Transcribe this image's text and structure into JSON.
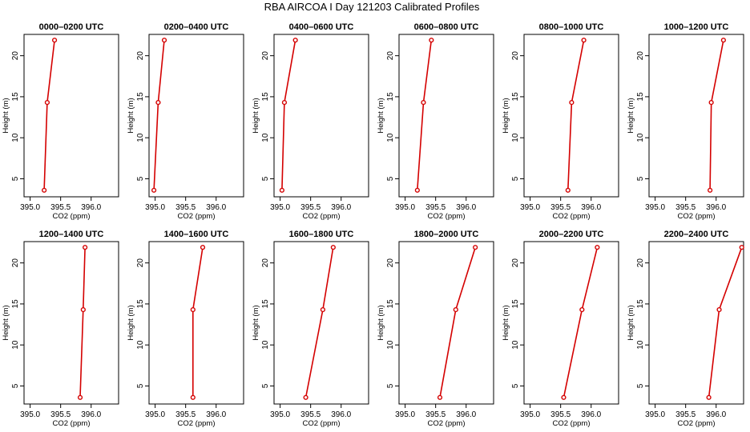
{
  "figure": {
    "title": "RBA AIRCOA I  Day 121203  Calibrated Profiles"
  },
  "chart_data": [
    {
      "type": "line",
      "title": "0000–0200 UTC",
      "xlabel": "CO2 (ppm)",
      "ylabel": "Height (m)",
      "xlim": [
        394.9,
        396.45
      ],
      "ylim": [
        2.8,
        22.6
      ],
      "xticks": [
        "395.0",
        "395.5",
        "396.0"
      ],
      "yticks": [
        "5",
        "10",
        "15",
        "20"
      ],
      "grid": false,
      "x": [
        395.23,
        395.28,
        395.4
      ],
      "y": [
        3.6,
        14.3,
        21.9
      ]
    },
    {
      "type": "line",
      "title": "0200–0400 UTC",
      "xlabel": "CO2 (ppm)",
      "ylabel": "Height (m)",
      "xlim": [
        394.9,
        396.45
      ],
      "ylim": [
        2.8,
        22.6
      ],
      "xticks": [
        "395.0",
        "395.5",
        "396.0"
      ],
      "yticks": [
        "5",
        "10",
        "15",
        "20"
      ],
      "grid": false,
      "x": [
        394.98,
        395.05,
        395.15
      ],
      "y": [
        3.6,
        14.3,
        21.9
      ]
    },
    {
      "type": "line",
      "title": "0400–0600 UTC",
      "xlabel": "CO2 (ppm)",
      "ylabel": "Height (m)",
      "xlim": [
        394.9,
        396.45
      ],
      "ylim": [
        2.8,
        22.6
      ],
      "xticks": [
        "395.0",
        "395.5",
        "396.0"
      ],
      "yticks": [
        "5",
        "10",
        "15",
        "20"
      ],
      "grid": false,
      "x": [
        395.03,
        395.07,
        395.25
      ],
      "y": [
        3.6,
        14.3,
        21.9
      ]
    },
    {
      "type": "line",
      "title": "0600–0800 UTC",
      "xlabel": "CO2 (ppm)",
      "ylabel": "Height (m)",
      "xlim": [
        394.9,
        396.45
      ],
      "ylim": [
        2.8,
        22.6
      ],
      "xticks": [
        "395.0",
        "395.5",
        "396.0"
      ],
      "yticks": [
        "5",
        "10",
        "15",
        "20"
      ],
      "grid": false,
      "x": [
        395.2,
        395.3,
        395.43
      ],
      "y": [
        3.6,
        14.3,
        21.9
      ]
    },
    {
      "type": "line",
      "title": "0800–1000 UTC",
      "xlabel": "CO2 (ppm)",
      "ylabel": "Height (m)",
      "xlim": [
        394.9,
        396.45
      ],
      "ylim": [
        2.8,
        22.6
      ],
      "xticks": [
        "395.0",
        "395.5",
        "396.0"
      ],
      "yticks": [
        "5",
        "10",
        "15",
        "20"
      ],
      "grid": false,
      "x": [
        395.62,
        395.68,
        395.88
      ],
      "y": [
        3.6,
        14.3,
        21.9
      ]
    },
    {
      "type": "line",
      "title": "1000–1200 UTC",
      "xlabel": "CO2 (ppm)",
      "ylabel": "Height (m)",
      "xlim": [
        394.9,
        396.45
      ],
      "ylim": [
        2.8,
        22.6
      ],
      "xticks": [
        "395.0",
        "395.5",
        "396.0"
      ],
      "yticks": [
        "5",
        "10",
        "15",
        "20"
      ],
      "grid": false,
      "x": [
        395.9,
        395.92,
        396.12
      ],
      "y": [
        3.6,
        14.3,
        21.9
      ]
    },
    {
      "type": "line",
      "title": "1200–1400 UTC",
      "xlabel": "CO2 (ppm)",
      "ylabel": "Height (m)",
      "xlim": [
        394.9,
        396.45
      ],
      "ylim": [
        2.8,
        22.6
      ],
      "xticks": [
        "395.0",
        "395.5",
        "396.0"
      ],
      "yticks": [
        "5",
        "10",
        "15",
        "20"
      ],
      "grid": false,
      "x": [
        395.82,
        395.87,
        395.9
      ],
      "y": [
        3.6,
        14.3,
        21.9
      ]
    },
    {
      "type": "line",
      "title": "1400–1600 UTC",
      "xlabel": "CO2 (ppm)",
      "ylabel": "Height (m)",
      "xlim": [
        394.9,
        396.45
      ],
      "ylim": [
        2.8,
        22.6
      ],
      "xticks": [
        "395.0",
        "395.5",
        "396.0"
      ],
      "yticks": [
        "5",
        "10",
        "15",
        "20"
      ],
      "grid": false,
      "x": [
        395.62,
        395.62,
        395.78
      ],
      "y": [
        3.6,
        14.3,
        21.9
      ]
    },
    {
      "type": "line",
      "title": "1600–1800 UTC",
      "xlabel": "CO2 (ppm)",
      "ylabel": "Height (m)",
      "xlim": [
        394.9,
        396.45
      ],
      "ylim": [
        2.8,
        22.6
      ],
      "xticks": [
        "395.0",
        "395.5",
        "396.0"
      ],
      "yticks": [
        "5",
        "10",
        "15",
        "20"
      ],
      "grid": false,
      "x": [
        395.42,
        395.7,
        395.87
      ],
      "y": [
        3.6,
        14.3,
        21.9
      ]
    },
    {
      "type": "line",
      "title": "1800–2000 UTC",
      "xlabel": "CO2 (ppm)",
      "ylabel": "Height (m)",
      "xlim": [
        394.9,
        396.45
      ],
      "ylim": [
        2.8,
        22.6
      ],
      "xticks": [
        "395.0",
        "395.5",
        "396.0"
      ],
      "yticks": [
        "5",
        "10",
        "15",
        "20"
      ],
      "grid": false,
      "x": [
        395.57,
        395.83,
        396.15
      ],
      "y": [
        3.6,
        14.3,
        21.9
      ]
    },
    {
      "type": "line",
      "title": "2000–2200 UTC",
      "xlabel": "CO2 (ppm)",
      "ylabel": "Height (m)",
      "xlim": [
        394.9,
        396.45
      ],
      "ylim": [
        2.8,
        22.6
      ],
      "xticks": [
        "395.0",
        "395.5",
        "396.0"
      ],
      "yticks": [
        "5",
        "10",
        "15",
        "20"
      ],
      "grid": false,
      "x": [
        395.55,
        395.85,
        396.1
      ],
      "y": [
        3.6,
        14.3,
        21.9
      ]
    },
    {
      "type": "line",
      "title": "2200–2400 UTC",
      "xlabel": "CO2 (ppm)",
      "ylabel": "Height (m)",
      "xlim": [
        394.9,
        396.45
      ],
      "ylim": [
        2.8,
        22.6
      ],
      "xticks": [
        "395.0",
        "395.5",
        "396.0"
      ],
      "yticks": [
        "5",
        "10",
        "15",
        "20"
      ],
      "grid": false,
      "x": [
        395.88,
        396.05,
        396.42
      ],
      "y": [
        3.6,
        14.3,
        21.9
      ]
    }
  ],
  "style": {
    "line_color": "#d40000",
    "marker_color": "#d40000",
    "axis_color": "#000000"
  }
}
